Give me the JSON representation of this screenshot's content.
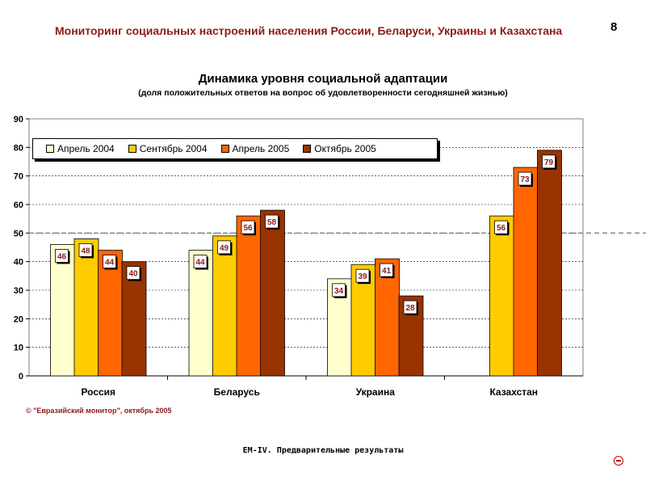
{
  "header": {
    "title": "Мониторинг социальных настроений населения России, Беларуси, Украины и Казахстана",
    "page_number": "8"
  },
  "chart_data": {
    "type": "bar",
    "title": "Динамика уровня социальной адаптации",
    "subtitle": "(доля положительных ответов на вопрос об удовлетворенности сегодняшней жизнью)",
    "categories": [
      "Россия",
      "Беларусь",
      "Украина",
      "Казахстан"
    ],
    "series": [
      {
        "name": "Апрель 2004",
        "color": "#ffffcc",
        "values": [
          46,
          44,
          34,
          null
        ]
      },
      {
        "name": "Сентябрь 2004",
        "color": "#ffcc00",
        "values": [
          48,
          49,
          39,
          56
        ]
      },
      {
        "name": "Апрель 2005",
        "color": "#ff6600",
        "values": [
          44,
          56,
          41,
          73
        ]
      },
      {
        "name": "Октябрь 2005",
        "color": "#993300",
        "values": [
          40,
          58,
          28,
          79
        ]
      }
    ],
    "ylim": [
      0,
      90
    ],
    "yticks": [
      0,
      10,
      20,
      30,
      40,
      50,
      60,
      70,
      80,
      90
    ],
    "reference_line": 50,
    "legend_position": "top-left"
  },
  "copyright": "© \"Евразийский монитор\", октябрь 2005",
  "footer": "EM-IV. Предварительные результаты"
}
